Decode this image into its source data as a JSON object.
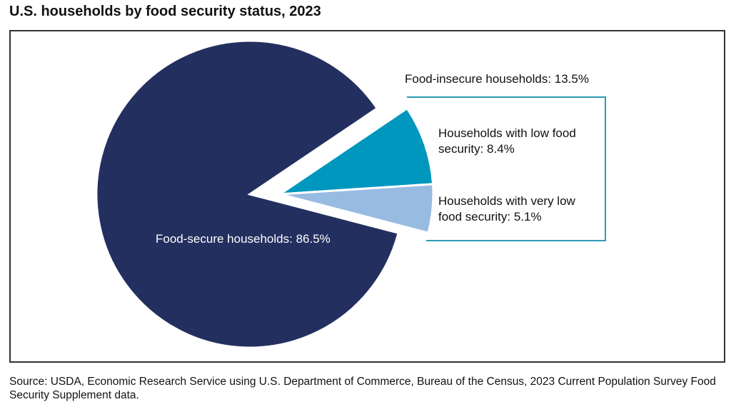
{
  "chart_data": {
    "type": "pie",
    "title": "U.S. households by food security status, 2023",
    "values": [
      86.5,
      8.4,
      5.1
    ],
    "value_labels": [
      "Food-secure households: 86.5%",
      "Households with low food security: 8.4%",
      "Households with very low food security: 5.1%"
    ],
    "colors": [
      "#232f5f",
      "#0097bf",
      "#98bbe2"
    ],
    "explode": [
      false,
      true,
      true
    ],
    "group": {
      "label": "Food-insecure households: 13.5%",
      "value": 13.5,
      "color": "#2d9bb6"
    },
    "source": "Source: USDA, Economic Research Service using U.S. Department of Commerce, Bureau of the Census, 2023 Current Population Survey Food Security Supplement data."
  }
}
